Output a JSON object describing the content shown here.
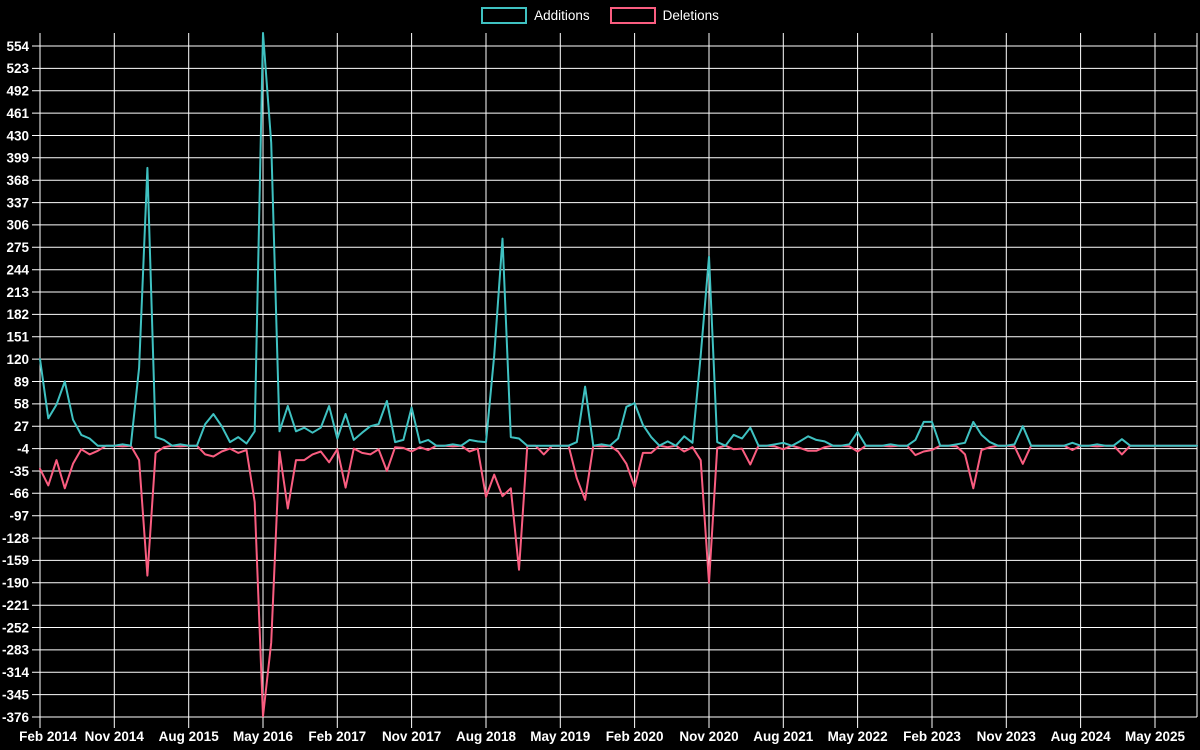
{
  "colors": {
    "background": "#000000",
    "grid": "#ffffff",
    "text": "#ffffff",
    "additions": "#3fc1c1",
    "deletions": "#fa5d80"
  },
  "chart_data": {
    "type": "line",
    "title": "",
    "legend_position": "top-center",
    "grid": true,
    "background_color": "#000000",
    "grid_color": "#ffffff",
    "text_color": "#ffffff",
    "x_tick_labels": [
      "Feb 2014",
      "Nov 2014",
      "Aug 2015",
      "May 2016",
      "Feb 2017",
      "Nov 2017",
      "Aug 2018",
      "May 2019",
      "Feb 2020",
      "Nov 2020",
      "Aug 2021",
      "May 2022",
      "Feb 2023",
      "Nov 2023",
      "Aug 2024",
      "May 2025"
    ],
    "y_ticks": [
      554,
      523,
      492,
      461,
      430,
      399,
      368,
      337,
      306,
      275,
      244,
      213,
      182,
      151,
      120,
      89,
      58,
      27,
      -4,
      -35,
      -66,
      -97,
      -128,
      -159,
      -190,
      -221,
      -252,
      -283,
      -314,
      -345,
      -376
    ],
    "ylim": [
      -376,
      554
    ],
    "y_tick_step": 31,
    "start_month": "2014-02",
    "interval": "monthly",
    "series": [
      {
        "name": "Additions",
        "color": "#3fc1c1",
        "values": [
          120,
          38,
          57,
          89,
          36,
          15,
          10,
          0,
          0,
          0,
          2,
          0,
          108,
          385,
          12,
          8,
          0,
          2,
          0,
          0,
          30,
          44,
          27,
          5,
          12,
          3,
          20,
          572,
          420,
          20,
          55,
          20,
          25,
          18,
          25,
          55,
          10,
          44,
          8,
          18,
          27,
          30,
          62,
          5,
          8,
          53,
          4,
          8,
          0,
          0,
          2,
          0,
          8,
          6,
          5,
          125,
          287,
          12,
          10,
          0,
          0,
          0,
          0,
          0,
          0,
          5,
          82,
          0,
          2,
          0,
          10,
          54,
          59,
          29,
          12,
          0,
          6,
          0,
          13,
          4,
          125,
          262,
          5,
          0,
          15,
          10,
          25,
          0,
          0,
          2,
          4,
          0,
          6,
          13,
          8,
          6,
          0,
          0,
          2,
          19,
          0,
          0,
          0,
          2,
          0,
          0,
          8,
          33,
          33,
          0,
          0,
          2,
          4,
          33,
          15,
          5,
          0,
          0,
          2,
          27,
          0,
          0,
          0,
          0,
          0,
          4,
          0,
          0,
          2,
          0,
          0,
          9,
          0,
          0,
          0,
          0,
          0,
          0
        ]
      },
      {
        "name": "Deletions",
        "color": "#fa5d80",
        "values": [
          -32,
          -55,
          -20,
          -59,
          -25,
          -5,
          -12,
          -7,
          0,
          0,
          -1,
          0,
          -20,
          -180,
          -10,
          -2,
          0,
          -1,
          0,
          0,
          -12,
          -15,
          -8,
          -4,
          -10,
          -6,
          -78,
          -375,
          -273,
          -8,
          -87,
          -20,
          -20,
          -12,
          -8,
          -23,
          -5,
          -58,
          -4,
          -10,
          -12,
          -5,
          -35,
          -2,
          -3,
          -8,
          -2,
          -6,
          0,
          0,
          -1,
          0,
          -8,
          -4,
          -71,
          -40,
          -70,
          -59,
          -172,
          0,
          0,
          -12,
          0,
          0,
          0,
          -45,
          -75,
          0,
          -1,
          0,
          -8,
          -25,
          -57,
          -10,
          -10,
          0,
          -2,
          0,
          -8,
          -2,
          -20,
          -190,
          -3,
          0,
          -5,
          -4,
          -26,
          0,
          0,
          -1,
          -5,
          0,
          -3,
          -7,
          -7,
          -2,
          0,
          0,
          -1,
          -8,
          0,
          0,
          0,
          -1,
          0,
          0,
          -13,
          -8,
          -6,
          0,
          0,
          -1,
          -12,
          -59,
          -6,
          -2,
          0,
          0,
          -1,
          -25,
          0,
          0,
          0,
          0,
          0,
          -6,
          0,
          0,
          -1,
          0,
          0,
          -12,
          0,
          0,
          0,
          0,
          0,
          0
        ]
      }
    ]
  }
}
